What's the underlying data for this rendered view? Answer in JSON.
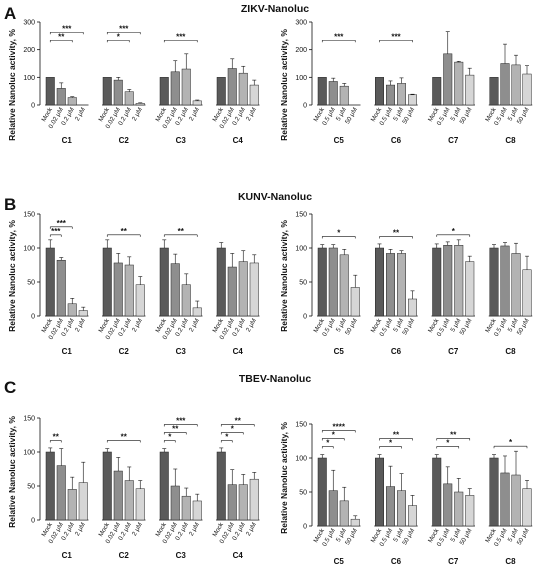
{
  "panels": [
    {
      "letter": "A",
      "title": "ZIKV-Nanoluc",
      "ylabel": "Relative Nanoluc activity, %",
      "charts": [
        {
          "type": "bar",
          "ylim": [
            0,
            300
          ],
          "yticks": [
            0,
            100,
            200,
            300
          ],
          "doses": [
            "Mock",
            "0.02 μM",
            "0.2 μM",
            "2 μM"
          ],
          "groups": [
            {
              "name": "C1",
              "values": [
                100,
                60,
                27,
                0
              ],
              "errors": [
                0,
                20,
                3,
                0
              ],
              "sig": [
                {
                  "to": 2,
                  "label": "**"
                },
                {
                  "to": 3,
                  "label": "***"
                }
              ]
            },
            {
              "name": "C2",
              "values": [
                100,
                90,
                48,
                6
              ],
              "errors": [
                0,
                10,
                8,
                2
              ],
              "sig": [
                {
                  "to": 2,
                  "label": "*"
                },
                {
                  "to": 3,
                  "label": "***"
                }
              ]
            },
            {
              "name": "C3",
              "values": [
                100,
                120,
                130,
                15
              ],
              "errors": [
                0,
                40,
                55,
                3
              ],
              "sig": [
                {
                  "to": 3,
                  "label": "***"
                }
              ]
            },
            {
              "name": "C4",
              "values": [
                100,
                132,
                115,
                72
              ],
              "errors": [
                0,
                35,
                25,
                18
              ],
              "sig": []
            }
          ]
        },
        {
          "type": "bar",
          "ylim": [
            0,
            300
          ],
          "yticks": [
            0,
            100,
            200,
            300
          ],
          "doses": [
            "Mock",
            "0.5 μM",
            "5 μM",
            "50 μM"
          ],
          "groups": [
            {
              "name": "C5",
              "values": [
                100,
                85,
                68,
                0
              ],
              "errors": [
                0,
                12,
                10,
                0
              ],
              "sig": [
                {
                  "to": 3,
                  "label": "***"
                }
              ]
            },
            {
              "name": "C6",
              "values": [
                100,
                72,
                78,
                37
              ],
              "errors": [
                0,
                15,
                20,
                2
              ],
              "sig": [
                {
                  "to": 3,
                  "label": "***"
                }
              ]
            },
            {
              "name": "C7",
              "values": [
                100,
                185,
                155,
                108
              ],
              "errors": [
                0,
                80,
                3,
                25
              ],
              "sig": []
            },
            {
              "name": "C8",
              "values": [
                100,
                150,
                145,
                112
              ],
              "errors": [
                0,
                70,
                35,
                30
              ],
              "sig": []
            }
          ]
        }
      ]
    },
    {
      "letter": "B",
      "title": "KUNV-Nanoluc",
      "ylabel": "Relative Nanoluc activity, %",
      "charts": [
        {
          "type": "bar",
          "ylim": [
            0,
            150
          ],
          "yticks": [
            0,
            50,
            100,
            150
          ],
          "doses": [
            "Mock",
            "0.02 μM",
            "0.2 μM",
            "2 μM"
          ],
          "groups": [
            {
              "name": "C1",
              "values": [
                100,
                82,
                18,
                8
              ],
              "errors": [
                12,
                4,
                8,
                5
              ],
              "sig": [
                {
                  "to": 1,
                  "label": "***"
                },
                {
                  "to": 2,
                  "label": "***"
                }
              ]
            },
            {
              "name": "C2",
              "values": [
                100,
                78,
                75,
                46
              ],
              "errors": [
                12,
                14,
                12,
                12
              ],
              "sig": [
                {
                  "to": 3,
                  "label": "**"
                }
              ]
            },
            {
              "name": "C3",
              "values": [
                100,
                77,
                46,
                12
              ],
              "errors": [
                12,
                14,
                16,
                10
              ],
              "sig": [
                {
                  "to": 3,
                  "label": "**"
                }
              ]
            },
            {
              "name": "C4",
              "values": [
                100,
                72,
                80,
                78
              ],
              "errors": [
                8,
                20,
                16,
                12
              ],
              "sig": []
            }
          ]
        },
        {
          "type": "bar",
          "ylim": [
            0,
            150
          ],
          "yticks": [
            0,
            50,
            100,
            150
          ],
          "doses": [
            "Mock",
            "0.5 μM",
            "5 μM",
            "50 μM"
          ],
          "groups": [
            {
              "name": "C5",
              "values": [
                100,
                100,
                90,
                42
              ],
              "errors": [
                5,
                5,
                8,
                18
              ],
              "sig": [
                {
                  "to": 3,
                  "label": "*"
                }
              ]
            },
            {
              "name": "C6",
              "values": [
                100,
                92,
                92,
                25
              ],
              "errors": [
                6,
                6,
                4,
                12
              ],
              "sig": [
                {
                  "to": 3,
                  "label": "**"
                }
              ]
            },
            {
              "name": "C7",
              "values": [
                100,
                104,
                104,
                80
              ],
              "errors": [
                6,
                5,
                8,
                8
              ],
              "sig": [
                {
                  "to": 3,
                  "label": "*"
                }
              ]
            },
            {
              "name": "C8",
              "values": [
                100,
                103,
                92,
                68
              ],
              "errors": [
                5,
                5,
                15,
                20
              ],
              "sig": []
            }
          ]
        }
      ]
    },
    {
      "letter": "C",
      "title": "TBEV-Nanoluc",
      "ylabel": "Relative Nanoluc activity, %",
      "charts": [
        {
          "type": "bar",
          "ylim": [
            0,
            150
          ],
          "yticks": [
            0,
            50,
            100,
            150
          ],
          "doses": [
            "Mock",
            "0.02 μM",
            "0.2 μM",
            "2 μM"
          ],
          "groups": [
            {
              "name": "C1",
              "values": [
                100,
                80,
                45,
                55
              ],
              "errors": [
                6,
                25,
                18,
                30
              ],
              "sig": [
                {
                  "to": 1,
                  "label": "**"
                }
              ]
            },
            {
              "name": "C2",
              "values": [
                100,
                72,
                58,
                46
              ],
              "errors": [
                5,
                20,
                20,
                12
              ],
              "sig": [
                {
                  "to": 3,
                  "label": "**"
                }
              ]
            },
            {
              "name": "C3",
              "values": [
                100,
                50,
                35,
                28
              ],
              "errors": [
                5,
                25,
                12,
                10
              ],
              "sig": [
                {
                  "to": 1,
                  "label": "*"
                },
                {
                  "to": 2,
                  "label": "**"
                },
                {
                  "to": 3,
                  "label": "***"
                }
              ]
            },
            {
              "name": "C4",
              "values": [
                100,
                52,
                52,
                60
              ],
              "errors": [
                6,
                22,
                15,
                10
              ],
              "sig": [
                {
                  "to": 1,
                  "label": "*"
                },
                {
                  "to": 2,
                  "label": "*"
                },
                {
                  "to": 3,
                  "label": "**"
                }
              ]
            }
          ]
        },
        {
          "type": "bar",
          "ylim": [
            0,
            150
          ],
          "yticks": [
            0,
            50,
            100,
            150
          ],
          "doses": [
            "Mock",
            "0.5 μM",
            "5 μM",
            "50 μM"
          ],
          "groups": [
            {
              "name": "C5",
              "values": [
                100,
                52,
                37,
                10
              ],
              "errors": [
                5,
                30,
                20,
                5
              ],
              "sig": [
                {
                  "to": 1,
                  "label": "*"
                },
                {
                  "to": 2,
                  "label": "*"
                },
                {
                  "to": 3,
                  "label": "****"
                }
              ]
            },
            {
              "name": "C6",
              "values": [
                100,
                58,
                52,
                30
              ],
              "errors": [
                5,
                30,
                25,
                15
              ],
              "sig": [
                {
                  "to": 2,
                  "label": "*"
                },
                {
                  "to": 3,
                  "label": "**"
                }
              ]
            },
            {
              "name": "C7",
              "values": [
                100,
                62,
                50,
                45
              ],
              "errors": [
                5,
                25,
                20,
                10
              ],
              "sig": [
                {
                  "to": 2,
                  "label": "*"
                },
                {
                  "to": 3,
                  "label": "**"
                }
              ]
            },
            {
              "name": "C8",
              "values": [
                100,
                78,
                75,
                55
              ],
              "errors": [
                5,
                25,
                35,
                12
              ],
              "sig": [
                {
                  "to": 3,
                  "label": "*"
                }
              ]
            }
          ]
        }
      ]
    }
  ],
  "colors": {
    "shades": [
      "#5a5a5a",
      "#8e8e8e",
      "#b3b3b3",
      "#d6d6d6"
    ],
    "edge": "#222222",
    "text": "#111111"
  },
  "chart_data": [
    {
      "type": "bar",
      "title": "ZIKV-Nanoluc",
      "ylabel": "Relative Nanoluc activity, %",
      "ylim": [
        0,
        300
      ],
      "categories": [
        "C1",
        "C2",
        "C3",
        "C4"
      ],
      "doses": [
        "Mock",
        "0.02 μM",
        "0.2 μM",
        "2 μM"
      ],
      "series": [
        {
          "name": "C1",
          "values": [
            100,
            60,
            27,
            0
          ]
        },
        {
          "name": "C2",
          "values": [
            100,
            90,
            48,
            6
          ]
        },
        {
          "name": "C3",
          "values": [
            100,
            120,
            130,
            15
          ]
        },
        {
          "name": "C4",
          "values": [
            100,
            132,
            115,
            72
          ]
        }
      ]
    },
    {
      "type": "bar",
      "title": "ZIKV-Nanoluc",
      "ylabel": "Relative Nanoluc activity, %",
      "ylim": [
        0,
        300
      ],
      "categories": [
        "C5",
        "C6",
        "C7",
        "C8"
      ],
      "doses": [
        "Mock",
        "0.5 μM",
        "5 μM",
        "50 μM"
      ],
      "series": [
        {
          "name": "C5",
          "values": [
            100,
            85,
            68,
            0
          ]
        },
        {
          "name": "C6",
          "values": [
            100,
            72,
            78,
            37
          ]
        },
        {
          "name": "C7",
          "values": [
            100,
            185,
            155,
            108
          ]
        },
        {
          "name": "C8",
          "values": [
            100,
            150,
            145,
            112
          ]
        }
      ]
    },
    {
      "type": "bar",
      "title": "KUNV-Nanoluc",
      "ylabel": "Relative Nanoluc activity, %",
      "ylim": [
        0,
        150
      ],
      "categories": [
        "C1",
        "C2",
        "C3",
        "C4"
      ],
      "doses": [
        "Mock",
        "0.02 μM",
        "0.2 μM",
        "2 μM"
      ],
      "series": [
        {
          "name": "C1",
          "values": [
            100,
            82,
            18,
            8
          ]
        },
        {
          "name": "C2",
          "values": [
            100,
            78,
            75,
            46
          ]
        },
        {
          "name": "C3",
          "values": [
            100,
            77,
            46,
            12
          ]
        },
        {
          "name": "C4",
          "values": [
            100,
            72,
            80,
            78
          ]
        }
      ]
    },
    {
      "type": "bar",
      "title": "KUNV-Nanoluc",
      "ylabel": "Relative Nanoluc activity, %",
      "ylim": [
        0,
        150
      ],
      "categories": [
        "C5",
        "C6",
        "C7",
        "C8"
      ],
      "doses": [
        "Mock",
        "0.5 μM",
        "5 μM",
        "50 μM"
      ],
      "series": [
        {
          "name": "C5",
          "values": [
            100,
            100,
            90,
            42
          ]
        },
        {
          "name": "C6",
          "values": [
            100,
            92,
            92,
            25
          ]
        },
        {
          "name": "C7",
          "values": [
            100,
            104,
            104,
            80
          ]
        },
        {
          "name": "C8",
          "values": [
            100,
            103,
            92,
            68
          ]
        }
      ]
    },
    {
      "type": "bar",
      "title": "TBEV-Nanoluc",
      "ylabel": "Relative Nanoluc activity, %",
      "ylim": [
        0,
        150
      ],
      "categories": [
        "C1",
        "C2",
        "C3",
        "C4"
      ],
      "doses": [
        "Mock",
        "0.02 μM",
        "0.2 μM",
        "2 μM"
      ],
      "series": [
        {
          "name": "C1",
          "values": [
            100,
            80,
            45,
            55
          ]
        },
        {
          "name": "C2",
          "values": [
            100,
            72,
            58,
            46
          ]
        },
        {
          "name": "C3",
          "values": [
            100,
            50,
            35,
            28
          ]
        },
        {
          "name": "C4",
          "values": [
            100,
            52,
            52,
            60
          ]
        }
      ]
    },
    {
      "type": "bar",
      "title": "TBEV-Nanoluc",
      "ylabel": "Relative Nanoluc activity, %",
      "ylim": [
        0,
        150
      ],
      "categories": [
        "C5",
        "C6",
        "C7",
        "C8"
      ],
      "doses": [
        "Mock",
        "0.5 μM",
        "5 μM",
        "50 μM"
      ],
      "series": [
        {
          "name": "C5",
          "values": [
            100,
            52,
            37,
            10
          ]
        },
        {
          "name": "C6",
          "values": [
            100,
            58,
            52,
            30
          ]
        },
        {
          "name": "C7",
          "values": [
            100,
            62,
            50,
            45
          ]
        },
        {
          "name": "C8",
          "values": [
            100,
            78,
            75,
            55
          ]
        }
      ]
    }
  ]
}
